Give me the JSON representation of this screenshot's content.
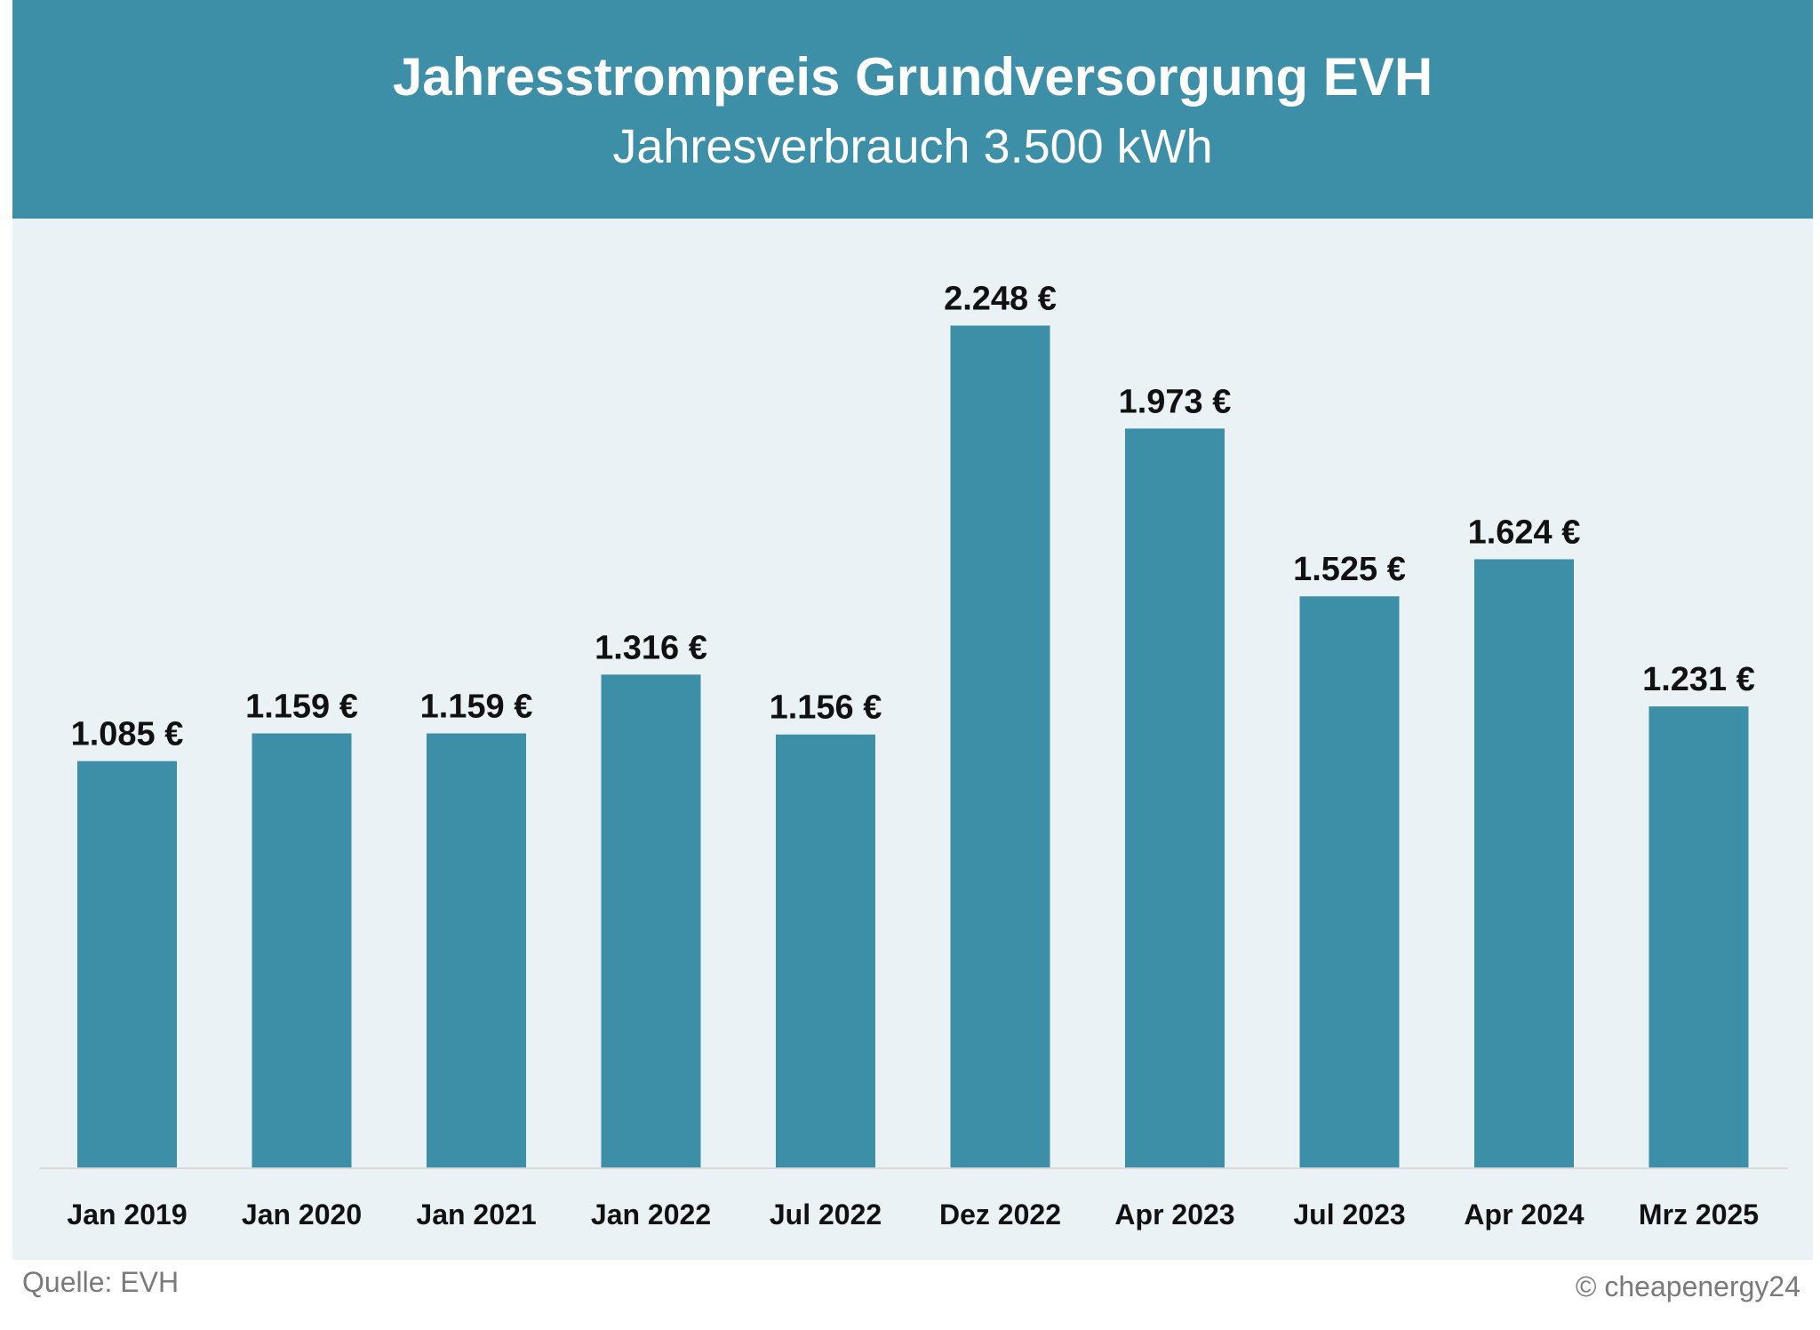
{
  "header": {
    "title": "Jahresstrompreis Grundversorgung EVH",
    "subtitle": "Jahresverbrauch 3.500 kWh"
  },
  "footer": {
    "source": "Quelle: EVH",
    "copyright": "© cheapenergy24"
  },
  "colors": {
    "bar": "#3d8ea7",
    "header": "#3d8ea7",
    "plot_background": "#eaf2f5",
    "label": "#111111"
  },
  "chart_data": {
    "type": "bar",
    "title": "Jahresstrompreis Grundversorgung EVH",
    "subtitle": "Jahresverbrauch 3.500 kWh",
    "categories": [
      "Jan 2019",
      "Jan 2020",
      "Jan 2021",
      "Jan 2022",
      "Jul 2022",
      "Dez 2022",
      "Apr 2023",
      "Jul 2023",
      "Apr 2024",
      "Mrz 2025"
    ],
    "values": [
      1085,
      1159,
      1159,
      1316,
      1156,
      2248,
      1973,
      1525,
      1624,
      1231
    ],
    "data_labels": [
      "1.085 €",
      "1.159 €",
      "1.159 €",
      "1.316 €",
      "1.156 €",
      "2.248 €",
      "1.973 €",
      "1.525 €",
      "1.624 €",
      "1.231 €"
    ],
    "xlabel": "",
    "ylabel": "",
    "ylim": [
      0,
      2400
    ],
    "grid": false,
    "legend": "none"
  }
}
